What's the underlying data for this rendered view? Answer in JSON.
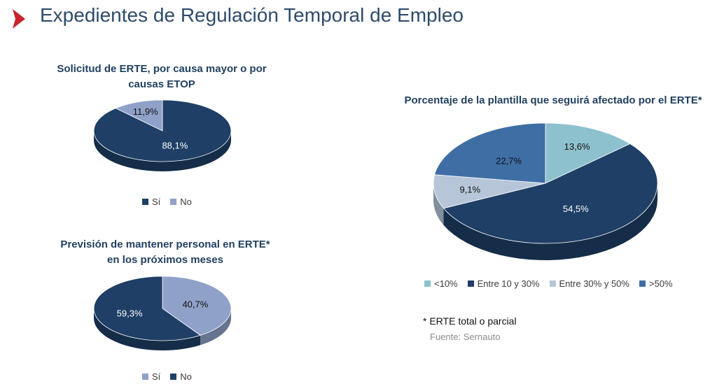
{
  "page_title": "Expedientes de Regulación Temporal de Empleo",
  "accent_color": "#c8232c",
  "footnote": "* ERTE total o parcial",
  "source": "Fuente: Sernauto",
  "chart_data": [
    {
      "type": "pie",
      "style": "3d",
      "title_lines": [
        "Solicitud de ERTE, por causa mayor o por",
        "causas ETOP"
      ],
      "categories": [
        "Sí",
        "No"
      ],
      "values": [
        88.1,
        11.9
      ],
      "labels": [
        "88,1%",
        "11,9%"
      ],
      "colors": [
        "#1f3f66",
        "#8fa1c8"
      ],
      "legend_position": "bottom"
    },
    {
      "type": "pie",
      "style": "3d",
      "title_lines": [
        "Previsión de mantener personal en ERTE*",
        "en los próximos meses"
      ],
      "categories": [
        "Sí",
        "No"
      ],
      "values": [
        40.7,
        59.3
      ],
      "labels": [
        "40,7%",
        "59,3%"
      ],
      "colors": [
        "#8fa1c8",
        "#1f3f66"
      ],
      "legend_position": "bottom"
    },
    {
      "type": "pie",
      "style": "3d",
      "title_lines": [
        "Porcentaje de la plantilla que seguirá afectado por el ERTE*"
      ],
      "categories": [
        "<10%",
        "Entre 10 y 30%",
        "Entre 30% y 50%",
        ">50%"
      ],
      "values": [
        13.6,
        54.5,
        9.1,
        22.7
      ],
      "labels": [
        "13,6%",
        "54,5%",
        "9,1%",
        "22,7%"
      ],
      "colors": [
        "#8ec1ce",
        "#1f3f66",
        "#b6c6d8",
        "#3e6ea4"
      ],
      "legend_position": "bottom"
    }
  ]
}
